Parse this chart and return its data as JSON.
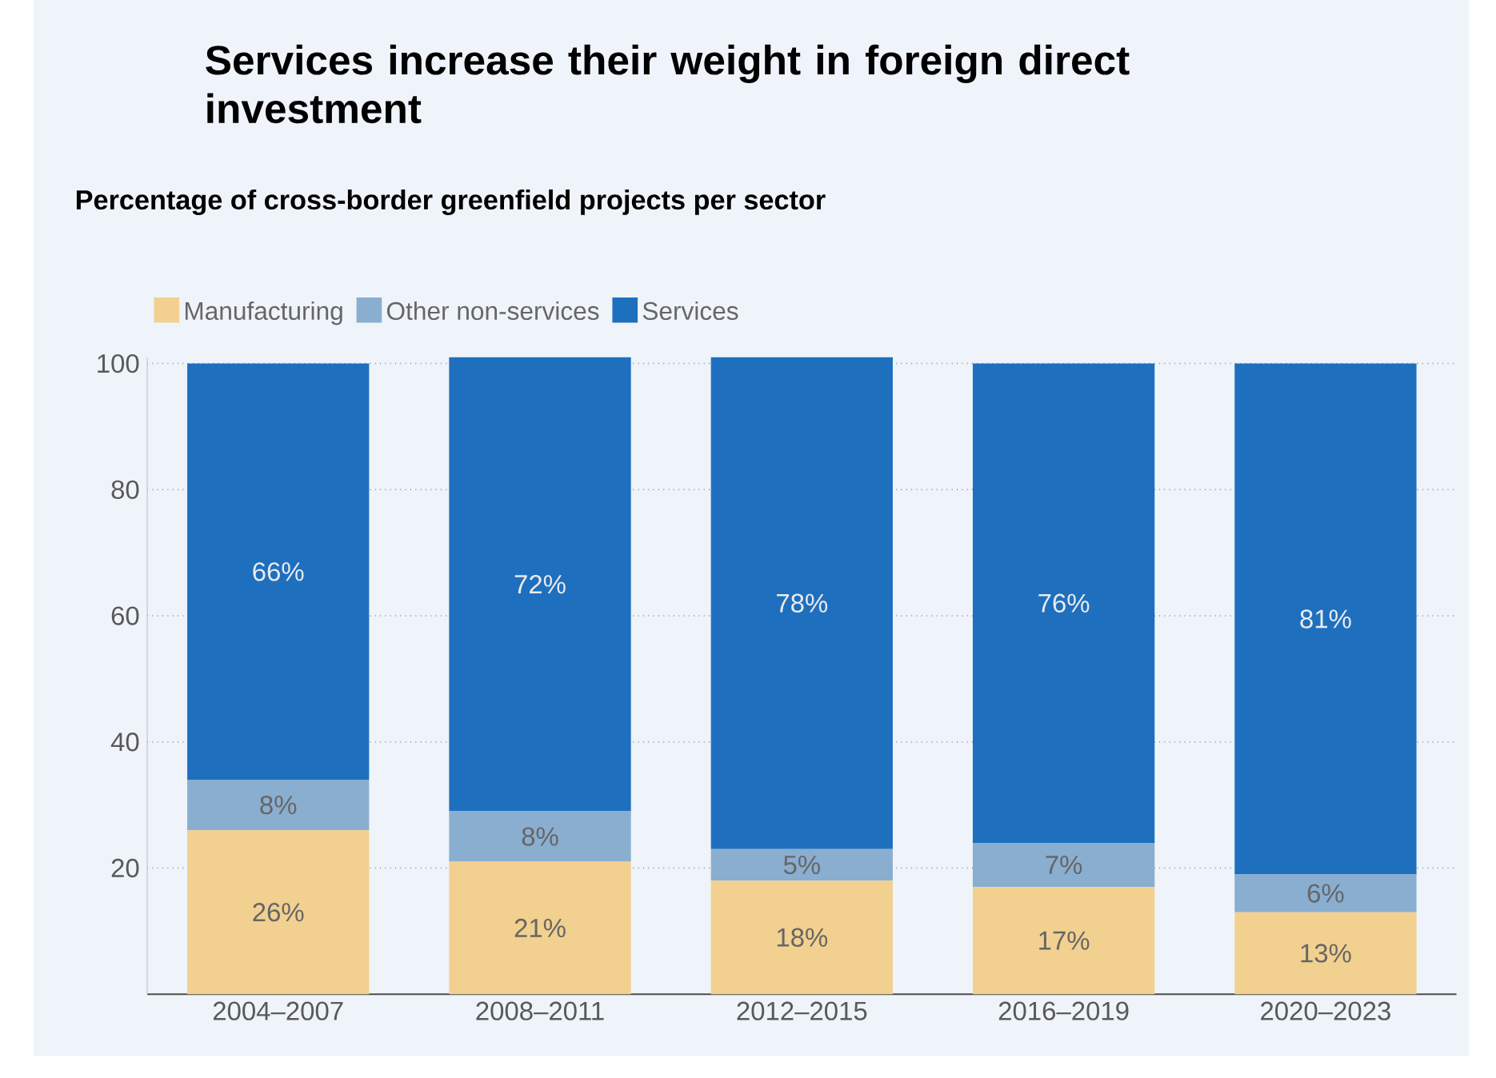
{
  "chart_data": {
    "type": "bar",
    "stacked": true,
    "title": "Services increase their weight in foreign direct investment",
    "subtitle": "Percentage of cross-border greenfield projects per sector",
    "categories": [
      "2004–2007",
      "2008–2011",
      "2012–2015",
      "2016–2019",
      "2020–2023"
    ],
    "series": [
      {
        "name": "Manufacturing",
        "color": "#f2d08f",
        "values": [
          26,
          21,
          18,
          17,
          13
        ],
        "value_labels": [
          "26%",
          "21%",
          "18%",
          "17%",
          "13%"
        ]
      },
      {
        "name": "Other non-services",
        "color": "#8aaed0",
        "values": [
          8,
          8,
          5,
          7,
          6
        ],
        "value_labels": [
          "8%",
          "8%",
          "5%",
          "7%",
          "6%"
        ]
      },
      {
        "name": "Services",
        "color": "#1f6fbf",
        "values": [
          66,
          72,
          78,
          76,
          81
        ],
        "value_labels": [
          "66%",
          "72%",
          "78%",
          "76%",
          "81%"
        ]
      }
    ],
    "ylim": [
      0,
      101
    ],
    "yticks": [
      20,
      40,
      60,
      80,
      100
    ],
    "grid": "y",
    "legend": "top left"
  }
}
